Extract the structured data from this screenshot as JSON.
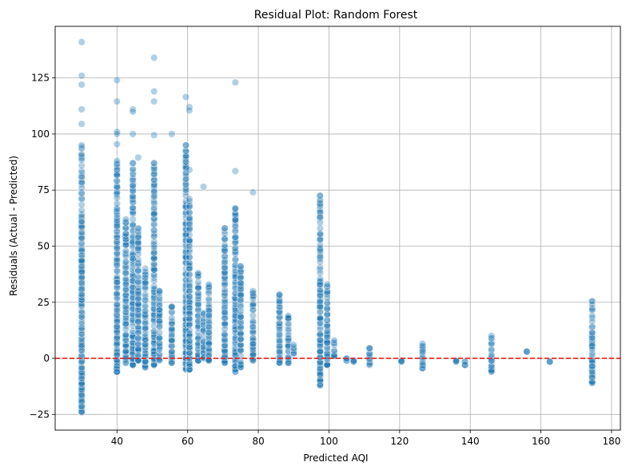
{
  "chart_data": {
    "type": "scatter",
    "title": "Residual Plot: Random Forest",
    "xlabel": "Predicted AQI",
    "ylabel": "Residuals (Actual - Predicted)",
    "xlim": [
      22.5,
      182.5
    ],
    "ylim": [
      -32,
      148
    ],
    "xticks": [
      40,
      60,
      80,
      100,
      120,
      140,
      160,
      180
    ],
    "yticks": [
      -25,
      0,
      25,
      50,
      75,
      100,
      125
    ],
    "grid": true,
    "reference_line": {
      "y": 0,
      "style": "dashed",
      "color": "#e8201a"
    },
    "point_color": "#1f77b4",
    "point_opacity": 0.35,
    "columns": [
      {
        "x": 30,
        "y_min": -24,
        "y_max": 95,
        "outliers": [
          141,
          126,
          122,
          111,
          104.5
        ]
      },
      {
        "x": 40,
        "y_min": -6,
        "y_max": 88,
        "outliers": [
          124,
          114.5,
          101,
          100,
          95.5
        ]
      },
      {
        "x": 42.5,
        "y_min": -2,
        "y_max": 62,
        "outliers": []
      },
      {
        "x": 44.5,
        "y_min": -3,
        "y_max": 87,
        "outliers": [
          111,
          110,
          100
        ]
      },
      {
        "x": 46,
        "y_min": -1,
        "y_max": 58,
        "outliers": [
          89.5
        ]
      },
      {
        "x": 48,
        "y_min": -4,
        "y_max": 40,
        "outliers": []
      },
      {
        "x": 50.5,
        "y_min": -3,
        "y_max": 87,
        "outliers": [
          134,
          119,
          114.5,
          99.5
        ]
      },
      {
        "x": 52,
        "y_min": -1,
        "y_max": 30,
        "outliers": []
      },
      {
        "x": 55.5,
        "y_min": -2,
        "y_max": 23,
        "outliers": [
          100
        ]
      },
      {
        "x": 59.5,
        "y_min": -5,
        "y_max": 95,
        "outliers": [
          116.5
        ]
      },
      {
        "x": 60.5,
        "y_min": -5,
        "y_max": 71,
        "outliers": [
          112,
          110.5,
          84
        ]
      },
      {
        "x": 63,
        "y_min": -1,
        "y_max": 38,
        "outliers": []
      },
      {
        "x": 64.5,
        "y_min": 0,
        "y_max": 20,
        "outliers": [
          76.5
        ]
      },
      {
        "x": 66,
        "y_min": -1,
        "y_max": 33,
        "outliers": []
      },
      {
        "x": 70.5,
        "y_min": -2,
        "y_max": 58,
        "outliers": []
      },
      {
        "x": 73.5,
        "y_min": -6,
        "y_max": 67,
        "outliers": [
          123,
          83.5
        ]
      },
      {
        "x": 75,
        "y_min": -4,
        "y_max": 41,
        "outliers": []
      },
      {
        "x": 78.5,
        "y_min": -1,
        "y_max": 30,
        "outliers": [
          74
        ]
      },
      {
        "x": 86,
        "y_min": -2,
        "y_max": 28.5,
        "outliers": []
      },
      {
        "x": 88.5,
        "y_min": -2,
        "y_max": 19,
        "outliers": []
      },
      {
        "x": 90,
        "y_min": 2,
        "y_max": 6,
        "outliers": []
      },
      {
        "x": 97.5,
        "y_min": -12,
        "y_max": 72.5,
        "outliers": []
      },
      {
        "x": 99.5,
        "y_min": -3,
        "y_max": 33,
        "outliers": []
      },
      {
        "x": 101.5,
        "y_min": 1,
        "y_max": 8,
        "outliers": []
      },
      {
        "x": 105,
        "y_min": -1,
        "y_max": 0,
        "outliers": []
      },
      {
        "x": 107,
        "y_min": -1.5,
        "y_max": -1,
        "outliers": []
      },
      {
        "x": 111.5,
        "y_min": -3,
        "y_max": 4.5,
        "outliers": []
      },
      {
        "x": 120.5,
        "y_min": -1.5,
        "y_max": -1,
        "outliers": []
      },
      {
        "x": 126.5,
        "y_min": -4.5,
        "y_max": 6.5,
        "outliers": []
      },
      {
        "x": 136,
        "y_min": -1.5,
        "y_max": -1,
        "outliers": []
      },
      {
        "x": 138.5,
        "y_min": -3,
        "y_max": -1.5,
        "outliers": []
      },
      {
        "x": 146,
        "y_min": -6,
        "y_max": 10,
        "outliers": []
      },
      {
        "x": 156,
        "y_min": 3,
        "y_max": 3,
        "outliers": []
      },
      {
        "x": 162.5,
        "y_min": -1.5,
        "y_max": -1.5,
        "outliers": []
      },
      {
        "x": 174.5,
        "y_min": -11,
        "y_max": 25.5,
        "outliers": []
      }
    ]
  }
}
